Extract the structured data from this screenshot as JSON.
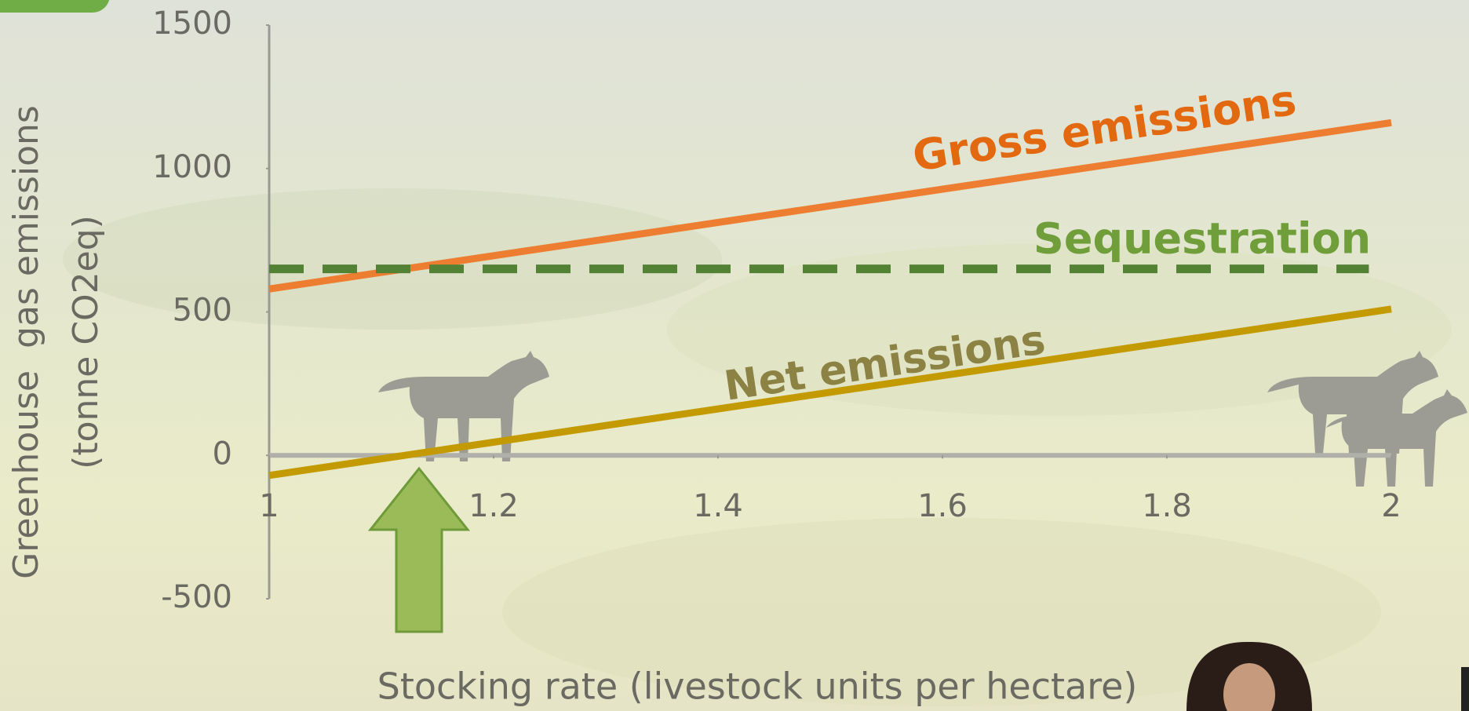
{
  "chart_data": {
    "type": "line",
    "xlabel": "Stocking rate (livestock units per hectare)",
    "ylabel": [
      "Greenhouse  gas emissions",
      "(tonne CO2eq)"
    ],
    "xlim": [
      1,
      2
    ],
    "xticks": [
      1,
      1.2,
      1.4,
      1.6,
      1.8,
      2
    ],
    "ylim": [
      -500,
      1500
    ],
    "yticks": [
      -500,
      0,
      500,
      1000,
      1500
    ],
    "series": [
      {
        "name": "Gross emissions",
        "color": "#ed7d31",
        "label_color": "#e2690f",
        "dash": false,
        "x": [
          1,
          2
        ],
        "values": [
          580,
          1160
        ]
      },
      {
        "name": "Sequestration",
        "color": "#548235",
        "label_color": "#6f9e3a",
        "dash": true,
        "x": [
          1,
          1.98
        ],
        "values": [
          650,
          650
        ]
      },
      {
        "name": "Net emissions",
        "color": "#c39a00",
        "label_color": "#8c8244",
        "dash": false,
        "x": [
          1,
          2
        ],
        "values": [
          -70,
          510
        ]
      }
    ]
  }
}
